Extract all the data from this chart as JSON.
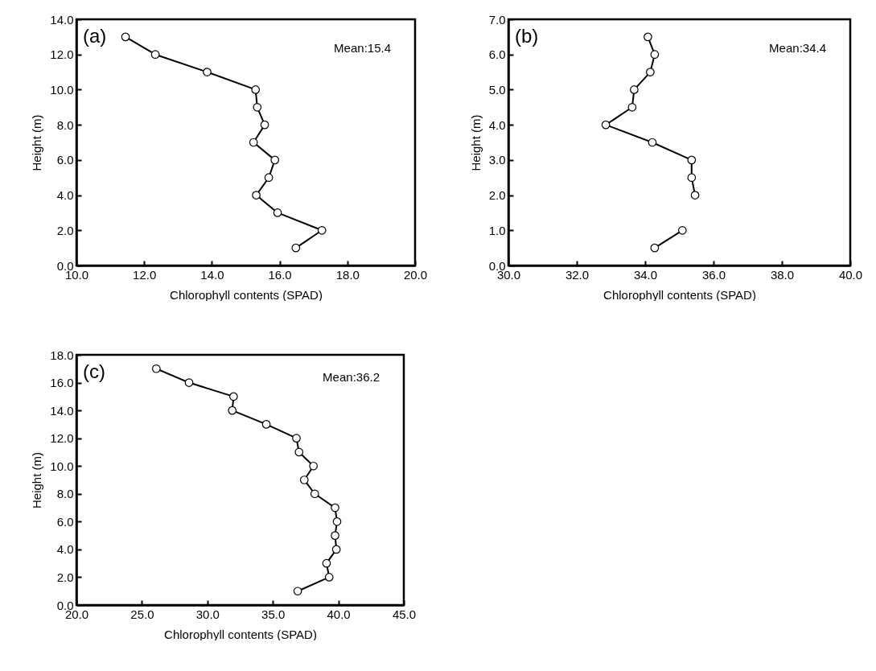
{
  "chart_data": [
    {
      "type": "line",
      "marker": "circle",
      "xlabel": "Chlorophyll contents (SPAD)",
      "ylabel": "Height (m)",
      "annotations": [
        "(a)",
        "Mean:15.4"
      ],
      "xlim": [
        10,
        20
      ],
      "xticks": [
        {
          "value": 10,
          "label": "10.0"
        },
        {
          "value": 12,
          "label": "12.0"
        },
        {
          "value": 14,
          "label": "14.0"
        },
        {
          "value": 16,
          "label": "16.0"
        },
        {
          "value": 18,
          "label": "18.0"
        },
        {
          "value": 20,
          "label": "20.0"
        }
      ],
      "ylim": [
        0,
        14
      ],
      "yticks": [
        {
          "value": 0,
          "label": "0.0"
        },
        {
          "value": 2,
          "label": "2.0"
        },
        {
          "value": 4,
          "label": "4.0"
        },
        {
          "value": 6,
          "label": "6.0"
        },
        {
          "value": 8,
          "label": "8.0"
        },
        {
          "value": 10,
          "label": "10.0"
        },
        {
          "value": 12,
          "label": "12.0"
        },
        {
          "value": 14,
          "label": "14.0"
        }
      ],
      "series": [
        {
          "color": "#000000",
          "x": [
            11.45,
            12.33,
            13.86,
            15.29,
            15.34,
            15.56,
            15.23,
            15.86,
            15.68,
            15.31,
            15.94,
            17.25,
            16.48
          ],
          "values": [
            13,
            12,
            11,
            10,
            9,
            8,
            7,
            6,
            5,
            4,
            3,
            2,
            1
          ]
        }
      ]
    },
    {
      "type": "line",
      "marker": "circle",
      "xlabel": "Chlorophyll contents (SPAD)",
      "ylabel": "Height (m)",
      "annotations": [
        "(b)",
        "Mean:34.4"
      ],
      "xlim": [
        30,
        40
      ],
      "xticks": [
        {
          "value": 30,
          "label": "30.0"
        },
        {
          "value": 32,
          "label": "32.0"
        },
        {
          "value": 34,
          "label": "34.0"
        },
        {
          "value": 36,
          "label": "36.0"
        },
        {
          "value": 38,
          "label": "38.0"
        },
        {
          "value": 40,
          "label": "40.0"
        }
      ],
      "ylim": [
        0,
        7
      ],
      "yticks": [
        {
          "value": 0,
          "label": "0.0"
        },
        {
          "value": 1,
          "label": "1.0"
        },
        {
          "value": 2,
          "label": "2.0"
        },
        {
          "value": 3,
          "label": "3.0"
        },
        {
          "value": 4,
          "label": "4.0"
        },
        {
          "value": 5,
          "label": "5.0"
        },
        {
          "value": 6,
          "label": "6.0"
        },
        {
          "value": 7,
          "label": "7.0"
        }
      ],
      "series": [
        {
          "color": "#000000",
          "x": [
            34.08,
            34.28,
            34.15,
            33.68,
            33.62,
            32.85,
            34.21,
            35.36,
            35.36,
            35.46,
            null,
            35.09,
            34.28
          ],
          "values": [
            6.5,
            6,
            5.5,
            5,
            4.5,
            4,
            3.5,
            3,
            2.5,
            2,
            null,
            1,
            0.5
          ]
        }
      ]
    },
    {
      "type": "line",
      "marker": "circle",
      "xlabel": "Chlorophyll contents (SPAD)",
      "ylabel": "Height (m)",
      "annotations": [
        "(c)",
        "Mean:36.2"
      ],
      "xlim": [
        20,
        45
      ],
      "xticks": [
        {
          "value": 20,
          "label": "20.0"
        },
        {
          "value": 25,
          "label": "25.0"
        },
        {
          "value": 30,
          "label": "30.0"
        },
        {
          "value": 35,
          "label": "35.0"
        },
        {
          "value": 40,
          "label": "40.0"
        },
        {
          "value": 45,
          "label": "45.0"
        }
      ],
      "ylim": [
        0,
        18
      ],
      "yticks": [
        {
          "value": 0,
          "label": "0.0"
        },
        {
          "value": 2,
          "label": "2.0"
        },
        {
          "value": 4,
          "label": "4.0"
        },
        {
          "value": 6,
          "label": "6.0"
        },
        {
          "value": 8,
          "label": "8.0"
        },
        {
          "value": 10,
          "label": "10.0"
        },
        {
          "value": 12,
          "label": "12.0"
        },
        {
          "value": 14,
          "label": "14.0"
        },
        {
          "value": 16,
          "label": "16.0"
        },
        {
          "value": 18,
          "label": "18.0"
        }
      ],
      "series": [
        {
          "color": "#000000",
          "x": [
            26.1,
            28.6,
            32.0,
            31.9,
            34.5,
            36.8,
            37.0,
            38.1,
            37.4,
            38.2,
            39.75,
            39.9,
            39.75,
            39.85,
            39.1,
            39.3,
            36.9
          ],
          "values": [
            17,
            16,
            15,
            14,
            13,
            12,
            11,
            10,
            9,
            8,
            7,
            6,
            5,
            4,
            3,
            2,
            1
          ]
        }
      ]
    }
  ]
}
